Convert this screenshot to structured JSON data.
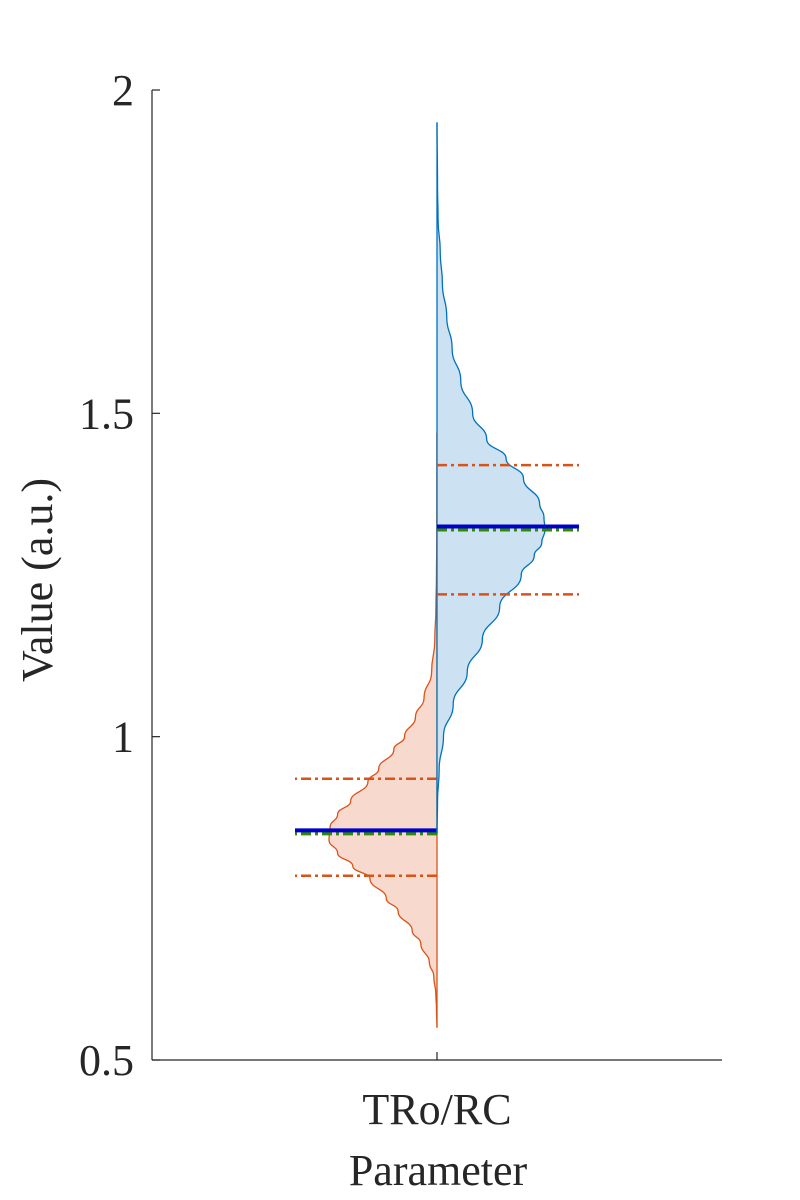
{
  "chart_data": {
    "type": "violin",
    "categories": [
      "TRo/RC"
    ],
    "xlabel": "Parameter",
    "ylabel": "Value (a.u.)",
    "ylim": [
      0.5,
      2
    ],
    "yticks": [
      0.5,
      1,
      1.5,
      2
    ],
    "ytick_labels": [
      "0.5",
      "1",
      "1.5",
      "2"
    ],
    "grid": false,
    "series": [
      {
        "side": "left",
        "color": "#D95319",
        "fill": "#F7D9CD",
        "range": [
          0.55,
          1.47
        ],
        "mean": 0.855,
        "median": 0.85,
        "q_low": 0.785,
        "q_high": 0.935,
        "density": [
          [
            0.55,
            0
          ],
          [
            0.58,
            0.005
          ],
          [
            0.6,
            0.01
          ],
          [
            0.63,
            0.03
          ],
          [
            0.65,
            0.07
          ],
          [
            0.68,
            0.15
          ],
          [
            0.7,
            0.23
          ],
          [
            0.73,
            0.36
          ],
          [
            0.75,
            0.47
          ],
          [
            0.78,
            0.62
          ],
          [
            0.8,
            0.78
          ],
          [
            0.82,
            0.92
          ],
          [
            0.84,
            1.0
          ],
          [
            0.86,
            0.99
          ],
          [
            0.88,
            0.92
          ],
          [
            0.9,
            0.8
          ],
          [
            0.93,
            0.64
          ],
          [
            0.95,
            0.54
          ],
          [
            0.98,
            0.4
          ],
          [
            1.0,
            0.3
          ],
          [
            1.03,
            0.2
          ],
          [
            1.06,
            0.12
          ],
          [
            1.1,
            0.05
          ],
          [
            1.15,
            0.02
          ],
          [
            1.2,
            0.01
          ],
          [
            1.25,
            0.005
          ],
          [
            1.3,
            0.002
          ],
          [
            1.35,
            0.001
          ],
          [
            1.47,
            0
          ]
        ]
      },
      {
        "side": "right",
        "color": "#0072BD",
        "fill": "#CCE2F2",
        "range": [
          0.85,
          1.95
        ],
        "mean": 1.325,
        "median": 1.32,
        "q_low": 1.22,
        "q_high": 1.42,
        "density": [
          [
            0.85,
            0
          ],
          [
            0.9,
            0.005
          ],
          [
            0.95,
            0.02
          ],
          [
            1.0,
            0.06
          ],
          [
            1.05,
            0.15
          ],
          [
            1.1,
            0.28
          ],
          [
            1.15,
            0.42
          ],
          [
            1.2,
            0.58
          ],
          [
            1.25,
            0.78
          ],
          [
            1.28,
            0.9
          ],
          [
            1.3,
            0.97
          ],
          [
            1.32,
            1.0
          ],
          [
            1.34,
            0.99
          ],
          [
            1.36,
            0.95
          ],
          [
            1.4,
            0.8
          ],
          [
            1.43,
            0.64
          ],
          [
            1.46,
            0.46
          ],
          [
            1.5,
            0.33
          ],
          [
            1.55,
            0.22
          ],
          [
            1.6,
            0.14
          ],
          [
            1.65,
            0.09
          ],
          [
            1.7,
            0.05
          ],
          [
            1.75,
            0.03
          ],
          [
            1.8,
            0.01
          ],
          [
            1.85,
            0.005
          ],
          [
            1.95,
            0
          ]
        ]
      }
    ],
    "line_colors": {
      "mean": "#0000CC",
      "median": "#2E8B00",
      "quartile": "#D95319"
    }
  }
}
